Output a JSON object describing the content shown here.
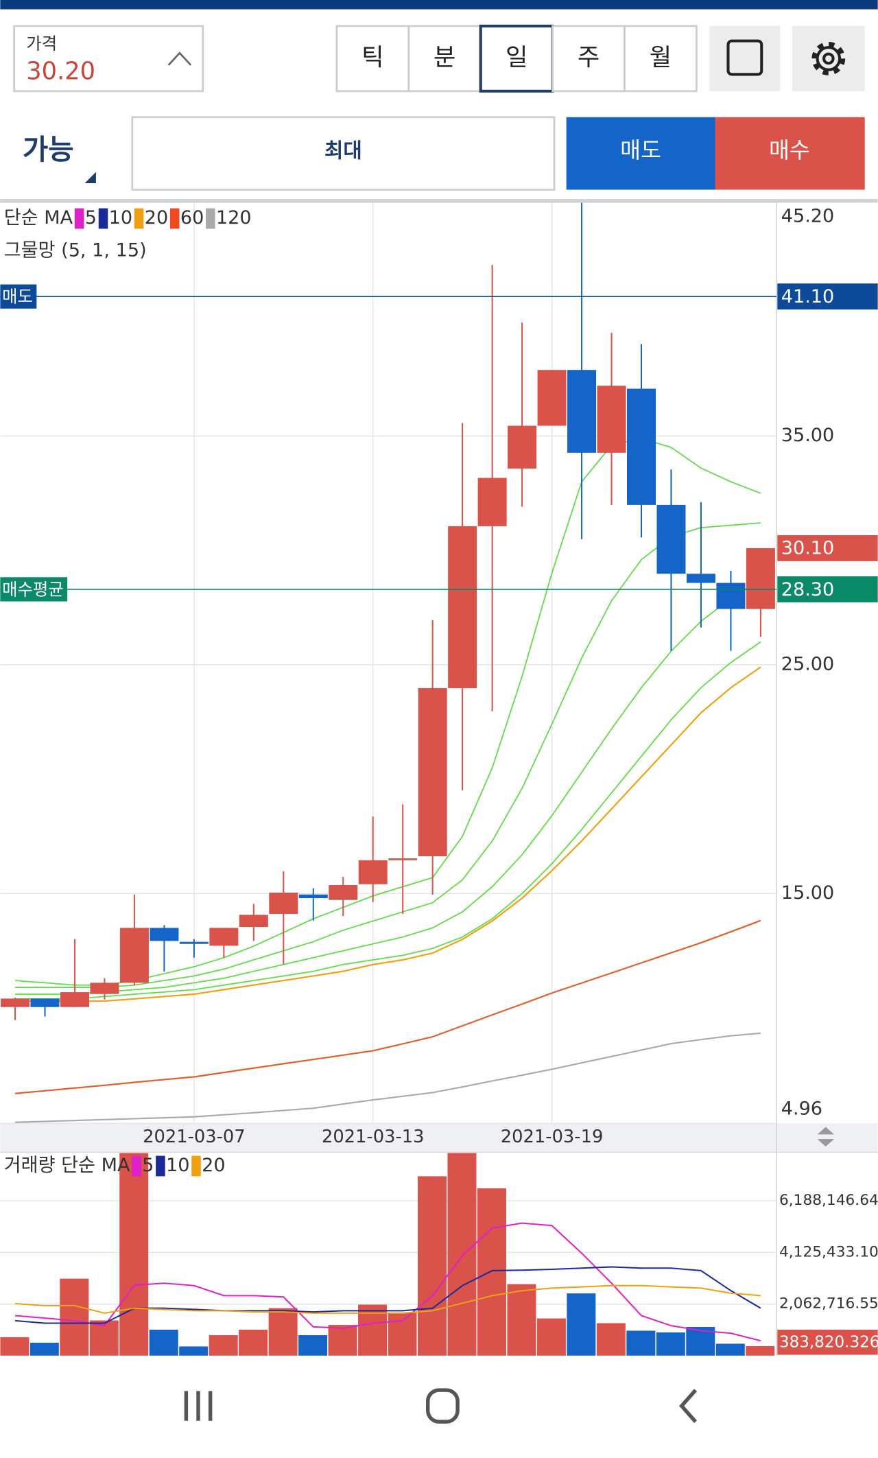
{
  "header": {
    "price_label": "가격",
    "price": "30.20",
    "tabs": [
      "틱",
      "분",
      "일",
      "주",
      "월"
    ],
    "selected_tab": 2
  },
  "order": {
    "mode": "가능",
    "quantity": "최대",
    "sell": "매도",
    "buy": "매수"
  },
  "chart_data": [
    {
      "type": "candlestick",
      "categories": [
        null,
        null,
        null,
        null,
        null,
        null,
        "2021-03-07",
        null,
        null,
        null,
        null,
        null,
        "2021-03-13",
        null,
        null,
        null,
        null,
        null,
        "2021-03-19",
        null,
        null,
        null,
        null,
        null,
        null,
        null
      ],
      "open": [
        10.04,
        10.41,
        10.04,
        10.61,
        11.1,
        13.5,
        12.89,
        12.72,
        13.54,
        14.11,
        14.96,
        14.72,
        15.41,
        16.46,
        16.63,
        23.98,
        31.06,
        33.58,
        35.45,
        37.89,
        34.27,
        37.07,
        31.99,
        28.98,
        28.58,
        27.44
      ],
      "high": [
        10.45,
        10.41,
        13.01,
        11.3,
        14.96,
        13.62,
        13.01,
        13.5,
        14.55,
        15.98,
        15.24,
        15.73,
        18.37,
        18.9,
        26.95,
        35.57,
        42.48,
        39.96,
        37.89,
        45.2,
        39.51,
        39.02,
        33.54,
        32.11,
        29.11,
        30.1
      ],
      "low": [
        9.47,
        9.63,
        10.04,
        10.37,
        10.98,
        11.59,
        12.2,
        12.2,
        12.93,
        11.91,
        13.82,
        14.02,
        14.63,
        14.11,
        14.96,
        19.51,
        22.97,
        31.91,
        35.45,
        30.49,
        31.99,
        30.57,
        25.61,
        26.63,
        25.61,
        26.22
      ],
      "close": [
        10.41,
        10.04,
        10.69,
        11.1,
        13.5,
        12.93,
        12.8,
        13.5,
        14.07,
        15.04,
        14.8,
        15.37,
        16.46,
        16.54,
        23.98,
        31.06,
        33.17,
        35.45,
        37.89,
        34.27,
        37.2,
        31.99,
        28.98,
        28.58,
        27.44,
        30.1
      ],
      "close_label": "30.10",
      "up_color": "#d9534a",
      "down_color": "#1565c8",
      "ylim": [
        4.96,
        45.2
      ],
      "yticks": [
        {
          "value": 45.2,
          "label": "45.20"
        },
        {
          "value": 35,
          "label": "35.00"
        },
        {
          "value": 25,
          "label": "25.00"
        },
        {
          "value": 15,
          "label": "15.00"
        },
        {
          "value": 4.96,
          "label": "4.96"
        }
      ],
      "grid": true,
      "ma_title": "단순 MA",
      "ma_legend": [
        {
          "name": "5",
          "color": "#e020c8"
        },
        {
          "name": "10",
          "color": "#1a2a9a"
        },
        {
          "name": "20",
          "color": "#f0a010"
        },
        {
          "name": "60",
          "color": "#f04a20"
        },
        {
          "name": "120",
          "color": "#aaaaaa"
        }
      ],
      "lines": [
        {
          "color": "#f0a010",
          "values": [
            10.3,
            10.3,
            10.3,
            10.3,
            10.4,
            10.5,
            10.6,
            10.8,
            11.0,
            11.2,
            11.4,
            11.6,
            11.9,
            12.1,
            12.4,
            13.0,
            13.8,
            14.8,
            16.0,
            17.3,
            18.7,
            20.1,
            21.5,
            22.9,
            24.0,
            24.9
          ]
        },
        {
          "color": "#e0602a",
          "values": [
            6.26,
            6.38,
            6.5,
            6.62,
            6.75,
            6.87,
            6.99,
            7.18,
            7.37,
            7.56,
            7.75,
            7.94,
            8.13,
            8.43,
            8.74,
            9.22,
            9.7,
            10.17,
            10.65,
            11.09,
            11.53,
            11.97,
            12.41,
            12.85,
            13.33,
            13.82
          ]
        },
        {
          "color": "#aaaaaa",
          "values": [
            5.0,
            5.04,
            5.08,
            5.12,
            5.16,
            5.2,
            5.24,
            5.33,
            5.42,
            5.52,
            5.62,
            5.8,
            5.98,
            6.14,
            6.3,
            6.55,
            6.81,
            7.06,
            7.32,
            7.6,
            7.88,
            8.16,
            8.44,
            8.62,
            8.78,
            8.9
          ]
        }
      ],
      "net": {
        "label": "그물망 (5, 1, 15)",
        "color": "#5fdc45",
        "lines": [
          [
            11.2,
            11.1,
            11.0,
            11.0,
            11.2,
            11.5,
            11.8,
            12.2,
            12.7,
            13.3,
            13.9,
            14.4,
            14.9,
            15.3,
            15.7,
            17.5,
            20.5,
            24.5,
            29.0,
            33.0,
            34.6,
            34.9,
            34.5,
            33.6,
            33.0,
            32.5
          ],
          [
            10.9,
            10.9,
            10.9,
            10.9,
            11.0,
            11.2,
            11.4,
            11.7,
            12.1,
            12.5,
            12.9,
            13.4,
            13.8,
            14.2,
            14.6,
            15.6,
            17.3,
            19.6,
            22.4,
            25.3,
            27.8,
            29.6,
            30.6,
            31.0,
            31.1,
            31.2
          ],
          [
            10.6,
            10.6,
            10.6,
            10.7,
            10.8,
            10.9,
            11.1,
            11.3,
            11.6,
            11.9,
            12.2,
            12.5,
            12.8,
            13.1,
            13.5,
            14.2,
            15.3,
            16.7,
            18.4,
            20.3,
            22.2,
            24.0,
            25.6,
            26.9,
            27.9,
            28.7
          ],
          [
            10.4,
            10.4,
            10.4,
            10.5,
            10.6,
            10.7,
            10.8,
            11.0,
            11.2,
            11.4,
            11.6,
            11.9,
            12.1,
            12.3,
            12.6,
            13.1,
            13.9,
            15.0,
            16.3,
            17.8,
            19.4,
            21.0,
            22.6,
            24.0,
            25.1,
            26.0
          ]
        ]
      },
      "levels": [
        {
          "label": "매도",
          "value": 41.1,
          "value_label": "41.10",
          "color": "#0d4a9a"
        },
        {
          "label": "매수평균",
          "value": 28.3,
          "value_label": "28.30",
          "color": "#0a8a68"
        }
      ]
    },
    {
      "type": "bar",
      "title": "거래량 단순 MA",
      "values": [
        740000,
        520000,
        3080000,
        1410000,
        8100000,
        1040000,
        370000,
        820000,
        1040000,
        1900000,
        820000,
        1230000,
        2040000,
        1710000,
        7170000,
        8100000,
        6690000,
        2860000,
        1490000,
        2490000,
        1300000,
        1000000,
        930000,
        1150000,
        480000,
        383820.326
      ],
      "last_label": "383,820.326",
      "ylim": [
        0,
        8100000
      ],
      "yticks": [
        {
          "value": 6188146.644,
          "label": "6,188,146.644"
        },
        {
          "value": 4125433.102,
          "label": "4,125,433.102"
        },
        {
          "value": 2062716.551,
          "label": "2,062,716.551"
        }
      ],
      "grid": true,
      "ma_legend": [
        {
          "name": "5",
          "color": "#e020c8"
        },
        {
          "name": "10",
          "color": "#1a2a9a"
        },
        {
          "name": "20",
          "color": "#f0a010"
        }
      ],
      "lines": [
        {
          "color": "#e020c8",
          "values": [
            1600000,
            1500000,
            1400000,
            1200000,
            2820000,
            2900000,
            2800000,
            2400000,
            2400000,
            2350000,
            1150000,
            1100000,
            1300000,
            1400000,
            2400000,
            4000000,
            5100000,
            5300000,
            5200000,
            4100000,
            2900000,
            1600000,
            1200000,
            1000000,
            900000,
            600000
          ]
        },
        {
          "color": "#1a2a9a",
          "values": [
            1400000,
            1300000,
            1300000,
            1300000,
            1900000,
            1900000,
            1850000,
            1800000,
            1800000,
            1800000,
            1750000,
            1800000,
            1800000,
            1800000,
            1900000,
            2800000,
            3400000,
            3420000,
            3450000,
            3500000,
            3550000,
            3500000,
            3500000,
            3400000,
            2600000,
            1900000
          ]
        },
        {
          "color": "#f0a010",
          "values": [
            2080000,
            2000000,
            2000000,
            1700000,
            1900000,
            1850000,
            1800000,
            1800000,
            1750000,
            1750000,
            1700000,
            1700000,
            1700000,
            1700000,
            1800000,
            2100000,
            2400000,
            2600000,
            2700000,
            2750000,
            2800000,
            2800000,
            2750000,
            2700000,
            2500000,
            2400000
          ]
        }
      ]
    }
  ]
}
